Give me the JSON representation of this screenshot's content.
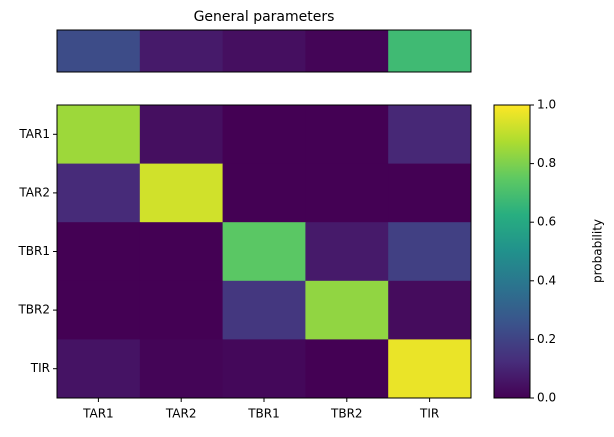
{
  "chart_data": [
    {
      "type": "heatmap",
      "title": "General parameters",
      "colormap": "viridis",
      "clim": [
        0,
        1
      ],
      "values": [
        [
          0.23,
          0.07,
          0.04,
          0.01,
          0.68
        ]
      ]
    },
    {
      "type": "heatmap",
      "colormap": "viridis",
      "clim": [
        0,
        1
      ],
      "x_categories": [
        "TAR1",
        "TAR2",
        "TBR1",
        "TBR2",
        "TIR"
      ],
      "y_categories": [
        "TAR1",
        "TAR2",
        "TBR1",
        "TBR2",
        "TIR"
      ],
      "values": [
        [
          0.85,
          0.04,
          0.0,
          0.0,
          0.11
        ],
        [
          0.12,
          0.93,
          0.0,
          0.0,
          0.0
        ],
        [
          0.0,
          0.0,
          0.74,
          0.07,
          0.19
        ],
        [
          0.0,
          0.0,
          0.16,
          0.83,
          0.03
        ],
        [
          0.05,
          0.01,
          0.02,
          0.0,
          0.97
        ]
      ],
      "colorbar": {
        "label": "probability",
        "ylim": [
          0,
          1
        ],
        "yticks": [
          {
            "value": 0,
            "label": "0.0"
          },
          {
            "value": 0.2,
            "label": "0.2"
          },
          {
            "value": 0.4,
            "label": "0.4"
          },
          {
            "value": 0.6,
            "label": "0.6"
          },
          {
            "value": 0.8,
            "label": "0.8"
          },
          {
            "value": 1,
            "label": "1.0"
          }
        ]
      }
    }
  ]
}
